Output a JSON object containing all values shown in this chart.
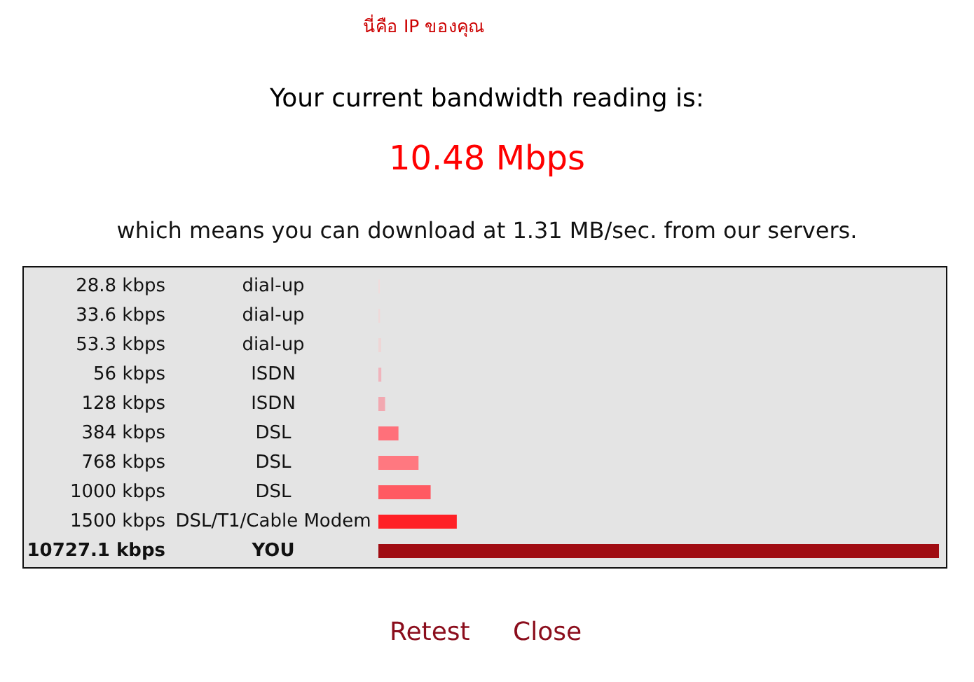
{
  "chart_data": {
    "type": "bar",
    "orientation": "horizontal",
    "title": "Your current bandwidth reading is:",
    "subtitle": "10.48 Mbps",
    "annotations": [
      "นี่คือ IP ของคุณ",
      "which means you can download at 1.31 MB/sec. from our servers.",
      "Retest",
      "Close"
    ],
    "categories": [
      "dial-up",
      "dial-up",
      "dial-up",
      "ISDN",
      "ISDN",
      "DSL",
      "DSL",
      "DSL",
      "DSL/T1/Cable Modem",
      "YOU"
    ],
    "values": [
      28.8,
      33.6,
      53.3,
      56,
      128,
      384,
      768,
      1000,
      1500,
      10727.1
    ],
    "value_labels": [
      "28.8 kbps",
      "33.6 kbps",
      "53.3 kbps",
      "56 kbps",
      "128 kbps",
      "384 kbps",
      "768 kbps",
      "1000 kbps",
      "1500 kbps",
      "10727.1 kbps"
    ],
    "colors": [
      "#f0dcdc",
      "#eedada",
      "#eed6d6",
      "#f0b4bc",
      "#f2a8b0",
      "#ff707a",
      "#ff7880",
      "#ff5a62",
      "#ff2026",
      "#a00c12"
    ]
  }
}
